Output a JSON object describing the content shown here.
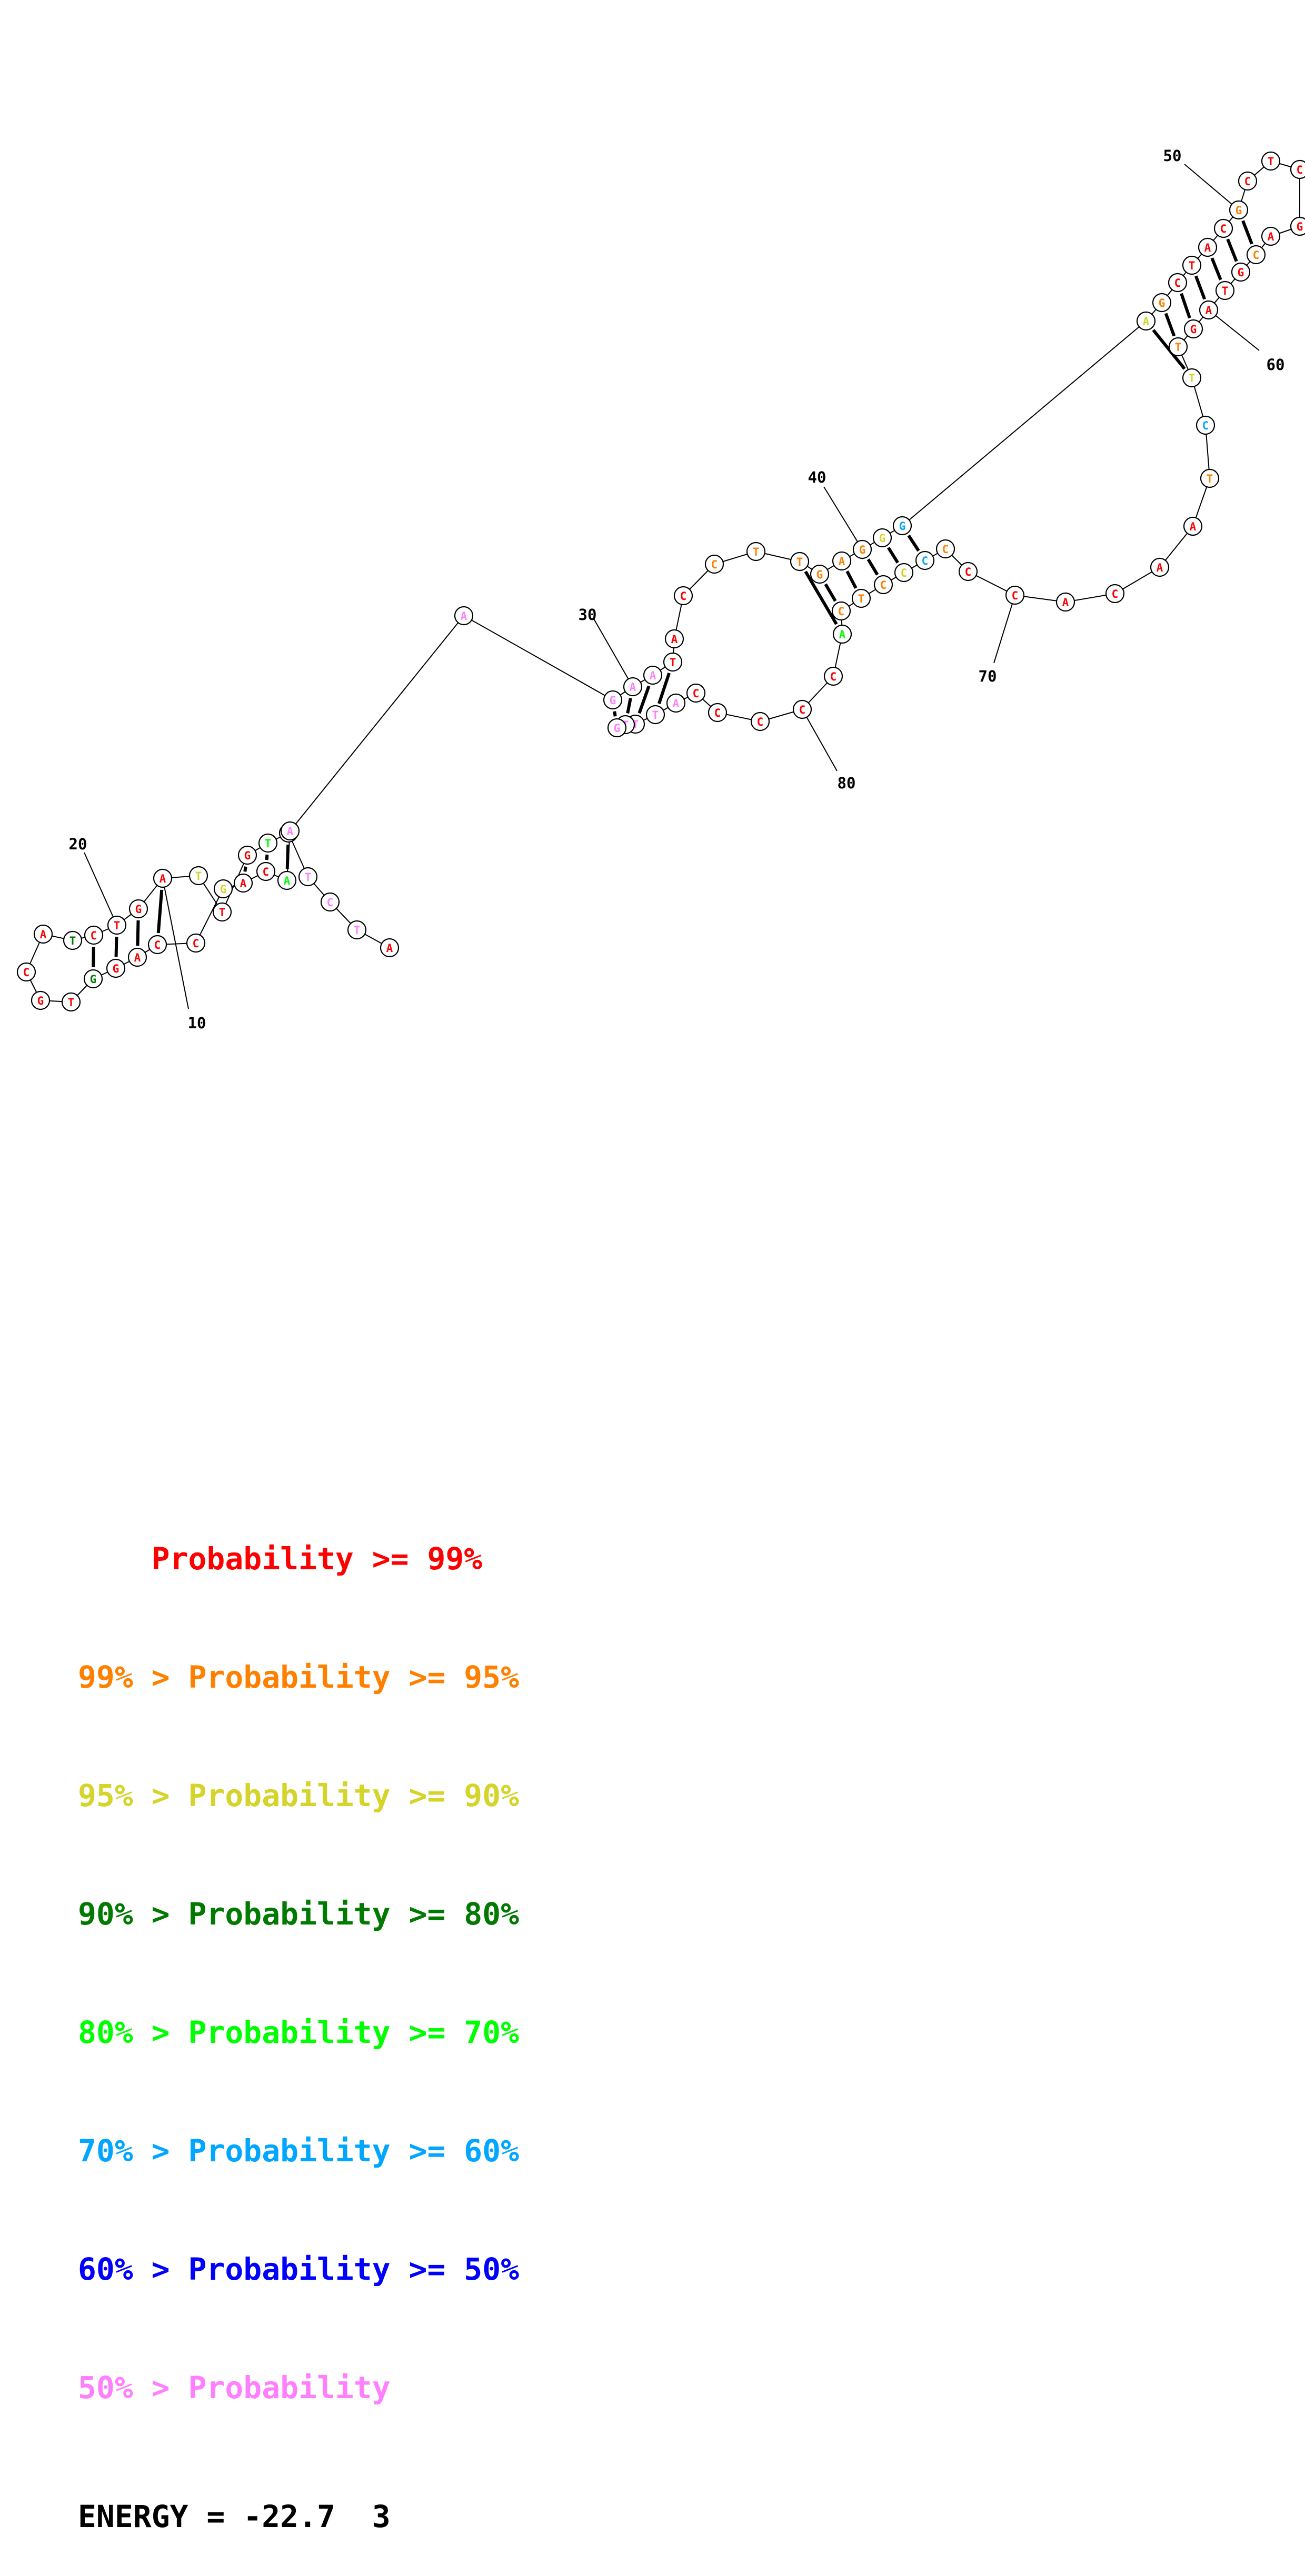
{
  "diagram": {
    "type": "rna-secondary-structure",
    "colors": {
      "p99": "#ff0000",
      "p95": "#ff8000",
      "p90": "#d4d42a",
      "p80": "#007a00",
      "p70": "#00ff00",
      "p60": "#00a6ff",
      "p50": "#0000ff",
      "plow": "#ff80ff"
    },
    "nucleotides": [
      {
        "n": 1,
        "base": "A",
        "color": "p99"
      },
      {
        "n": 2,
        "base": "T",
        "color": "plow"
      },
      {
        "n": 3,
        "base": "C",
        "color": "plow"
      },
      {
        "n": 4,
        "base": "T",
        "color": "plow"
      },
      {
        "n": 5,
        "base": "A",
        "color": "plow"
      },
      {
        "n": 6,
        "base": "T",
        "color": "p70"
      },
      {
        "n": 7,
        "base": "G",
        "color": "p99"
      },
      {
        "n": 8,
        "base": "T",
        "color": "p99"
      },
      {
        "n": 9,
        "base": "T",
        "color": "p90"
      },
      {
        "n": 10,
        "base": "A",
        "color": "p99"
      },
      {
        "n": 11,
        "base": "G",
        "color": "p99"
      },
      {
        "n": 12,
        "base": "T",
        "color": "p99"
      },
      {
        "n": 13,
        "base": "C",
        "color": "p99"
      },
      {
        "n": 14,
        "base": "T",
        "color": "p80"
      },
      {
        "n": 15,
        "base": "A",
        "color": "p99"
      },
      {
        "n": 16,
        "base": "C",
        "color": "p99"
      },
      {
        "n": 17,
        "base": "G",
        "color": "p99"
      },
      {
        "n": 18,
        "base": "T",
        "color": "p99"
      },
      {
        "n": 19,
        "base": "G",
        "color": "p80"
      },
      {
        "n": 20,
        "base": "G",
        "color": "p99"
      },
      {
        "n": 21,
        "base": "A",
        "color": "p99"
      },
      {
        "n": 22,
        "base": "C",
        "color": "p99"
      },
      {
        "n": 23,
        "base": "C",
        "color": "p99"
      },
      {
        "n": 24,
        "base": "G",
        "color": "p90"
      },
      {
        "n": 25,
        "base": "A",
        "color": "p99"
      },
      {
        "n": 26,
        "base": "C",
        "color": "p99"
      },
      {
        "n": 27,
        "base": "A",
        "color": "p70"
      },
      {
        "n": 28,
        "base": "A",
        "color": "plow"
      },
      {
        "n": 29,
        "base": "A",
        "color": "plow"
      },
      {
        "n": 30,
        "base": "G",
        "color": "plow"
      },
      {
        "n": 31,
        "base": "A",
        "color": "plow"
      },
      {
        "n": 32,
        "base": "A",
        "color": "plow"
      },
      {
        "n": 33,
        "base": "T",
        "color": "p99"
      },
      {
        "n": 34,
        "base": "A",
        "color": "p99"
      },
      {
        "n": 35,
        "base": "C",
        "color": "p99"
      },
      {
        "n": 36,
        "base": "C",
        "color": "p95"
      },
      {
        "n": 37,
        "base": "T",
        "color": "p95"
      },
      {
        "n": 38,
        "base": "T",
        "color": "p95"
      },
      {
        "n": 39,
        "base": "G",
        "color": "p95"
      },
      {
        "n": 40,
        "base": "A",
        "color": "p95"
      },
      {
        "n": 41,
        "base": "G",
        "color": "p95"
      },
      {
        "n": 42,
        "base": "G",
        "color": "p90"
      },
      {
        "n": 43,
        "base": "G",
        "color": "p60"
      },
      {
        "n": 44,
        "base": "A",
        "color": "p90"
      },
      {
        "n": 45,
        "base": "G",
        "color": "p95"
      },
      {
        "n": 46,
        "base": "C",
        "color": "p99"
      },
      {
        "n": 47,
        "base": "T",
        "color": "p99"
      },
      {
        "n": 48,
        "base": "A",
        "color": "p99"
      },
      {
        "n": 49,
        "base": "C",
        "color": "p99"
      },
      {
        "n": 50,
        "base": "G",
        "color": "p95"
      },
      {
        "n": 51,
        "base": "C",
        "color": "p99"
      },
      {
        "n": 52,
        "base": "T",
        "color": "p99"
      },
      {
        "n": 53,
        "base": "C",
        "color": "p99"
      },
      {
        "n": 54,
        "base": "G",
        "color": "p99"
      },
      {
        "n": 55,
        "base": "A",
        "color": "p99"
      },
      {
        "n": 56,
        "base": "C",
        "color": "p95"
      },
      {
        "n": 57,
        "base": "G",
        "color": "p99"
      },
      {
        "n": 58,
        "base": "T",
        "color": "p99"
      },
      {
        "n": 59,
        "base": "A",
        "color": "p99"
      },
      {
        "n": 60,
        "base": "G",
        "color": "p99"
      },
      {
        "n": 61,
        "base": "T",
        "color": "p95"
      },
      {
        "n": 62,
        "base": "T",
        "color": "p90"
      },
      {
        "n": 63,
        "base": "C",
        "color": "p60"
      },
      {
        "n": 64,
        "base": "T",
        "color": "p95"
      },
      {
        "n": 65,
        "base": "A",
        "color": "p99"
      },
      {
        "n": 66,
        "base": "A",
        "color": "p99"
      },
      {
        "n": 67,
        "base": "C",
        "color": "p99"
      },
      {
        "n": 68,
        "base": "A",
        "color": "p99"
      },
      {
        "n": 69,
        "base": "C",
        "color": "p99"
      },
      {
        "n": 70,
        "base": "C",
        "color": "p99"
      },
      {
        "n": 71,
        "base": "C",
        "color": "p95"
      },
      {
        "n": 72,
        "base": "C",
        "color": "p60"
      },
      {
        "n": 73,
        "base": "C",
        "color": "p90"
      },
      {
        "n": 74,
        "base": "C",
        "color": "p95"
      },
      {
        "n": 75,
        "base": "T",
        "color": "p95"
      },
      {
        "n": 76,
        "base": "C",
        "color": "p95"
      },
      {
        "n": 77,
        "base": "A",
        "color": "p70"
      },
      {
        "n": 78,
        "base": "C",
        "color": "p99"
      },
      {
        "n": 79,
        "base": "C",
        "color": "p99"
      },
      {
        "n": 80,
        "base": "C",
        "color": "p99"
      },
      {
        "n": 81,
        "base": "C",
        "color": "p99"
      },
      {
        "n": 82,
        "base": "C",
        "color": "p99"
      },
      {
        "n": 83,
        "base": "A",
        "color": "plow"
      },
      {
        "n": 84,
        "base": "T",
        "color": "plow"
      },
      {
        "n": 85,
        "base": "T",
        "color": "plow"
      },
      {
        "n": 86,
        "base": "T",
        "color": "plow"
      },
      {
        "n": 87,
        "base": "G",
        "color": "plow"
      }
    ],
    "pairs": [
      [
        5,
        27
      ],
      [
        6,
        26
      ],
      [
        7,
        25
      ],
      [
        8,
        24
      ],
      [
        10,
        22
      ],
      [
        11,
        21
      ],
      [
        12,
        20
      ],
      [
        13,
        19
      ],
      [
        30,
        87
      ],
      [
        31,
        86
      ],
      [
        32,
        85
      ],
      [
        33,
        84
      ],
      [
        38,
        77
      ],
      [
        39,
        76
      ],
      [
        40,
        75
      ],
      [
        41,
        74
      ],
      [
        42,
        73
      ],
      [
        43,
        72
      ],
      [
        44,
        62
      ],
      [
        45,
        61
      ],
      [
        46,
        60
      ],
      [
        47,
        59
      ],
      [
        48,
        58
      ],
      [
        49,
        57
      ],
      [
        50,
        56
      ]
    ],
    "numbers": [
      "10",
      "20",
      "30",
      "40",
      "50",
      "60",
      "70",
      "80"
    ]
  },
  "legend": {
    "rows": [
      {
        "text": "    Probability >= 99%",
        "color": "#ff0000"
      },
      {
        "text": "99% > Probability >= 95%",
        "color": "#ff8000"
      },
      {
        "text": "95% > Probability >= 90%",
        "color": "#d4d42a"
      },
      {
        "text": "90% > Probability >= 80%",
        "color": "#007a00"
      },
      {
        "text": "80% > Probability >= 70%",
        "color": "#00ff00"
      },
      {
        "text": "70% > Probability >= 60%",
        "color": "#00a6ff"
      },
      {
        "text": "60% > Probability >= 50%",
        "color": "#0000ff"
      },
      {
        "text": "50% > Probability",
        "color": "#ff80ff"
      }
    ],
    "energy": "ENERGY = -22.7  3"
  }
}
